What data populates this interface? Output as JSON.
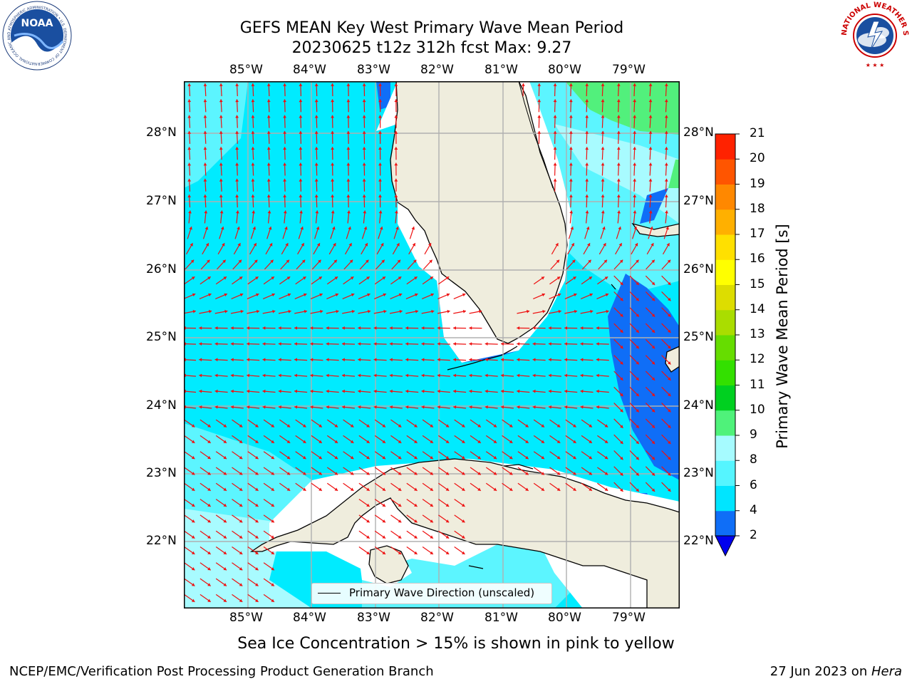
{
  "title": {
    "line1": "GEFS MEAN Key West Primary Wave Mean Period",
    "line2": "20230625 t12z 312h fcst   Max: 9.27"
  },
  "logos": {
    "left_name": "NOAA",
    "left_ring_text": "NATIONAL OCEANIC AND ATMOSPHERIC ADMINISTRATION • U.S. DEPARTMENT OF COMMERCE",
    "right_ring_text": "NATIONAL WEATHER SERVICE"
  },
  "map": {
    "lon_labels": [
      "85°W",
      "84°W",
      "83°W",
      "82°W",
      "81°W",
      "80°W",
      "79°W"
    ],
    "lat_labels": [
      "28°N",
      "27°N",
      "26°N",
      "25°N",
      "24°N",
      "23°N",
      "22°N"
    ],
    "legend_label": "Primary Wave Direction (unscaled)",
    "arrow_color": "#ee1111",
    "land_color": "#efeddd",
    "grid_color": "#b0b0b0"
  },
  "colorbar": {
    "label": "Primary Wave Mean Period [s]",
    "ticks": [
      "2",
      "4",
      "6",
      "8",
      "9",
      "10",
      "11",
      "12",
      "13",
      "14",
      "15",
      "16",
      "17",
      "18",
      "19",
      "20",
      "21"
    ],
    "colors": [
      "#0f6ef7",
      "#00e5ff",
      "#55f5ff",
      "#a6fbff",
      "#4ff27a",
      "#00d020",
      "#33e000",
      "#66dd00",
      "#aadd00",
      "#dddd00",
      "#ffff00",
      "#ffe000",
      "#ffb000",
      "#ff8800",
      "#ff5500",
      "#ff2200"
    ],
    "under_color": "#0000ee"
  },
  "captions": {
    "sea_ice": "Sea Ice Concentration > 15% is shown in pink to yellow",
    "branch": "NCEP/EMC/Verification Post Processing Product Generation Branch",
    "date": "27 Jun 2023 on ",
    "machine": "Hera"
  }
}
